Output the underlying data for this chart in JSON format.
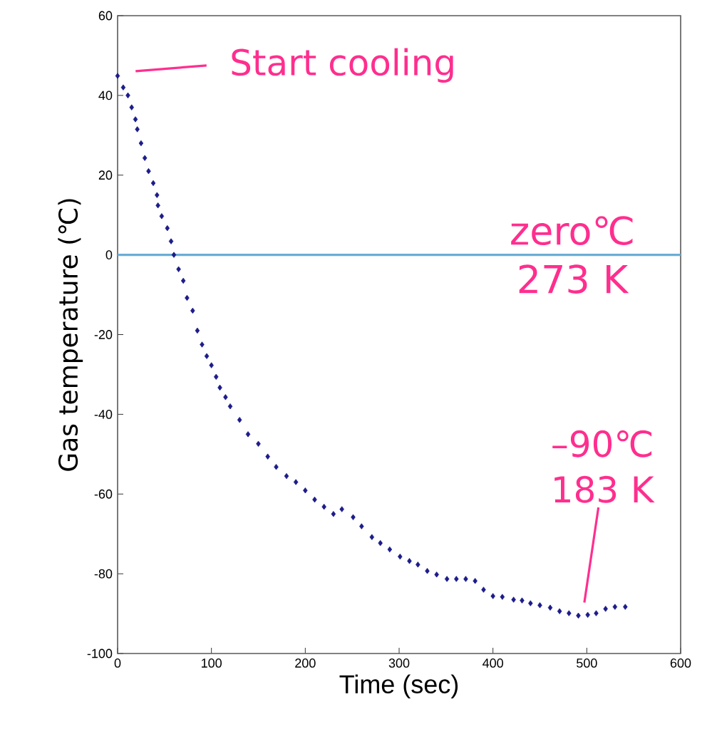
{
  "chart_data": {
    "type": "scatter",
    "xlabel": "Time (sec)",
    "ylabel": "Gas temperature (℃)",
    "x": [
      0,
      6,
      11,
      15,
      19,
      21,
      25,
      29,
      33,
      38,
      42,
      43,
      47,
      53,
      57,
      60,
      65,
      70,
      74,
      80,
      85,
      90,
      95,
      100,
      105,
      109,
      115,
      120,
      130,
      139,
      150,
      160,
      169,
      180,
      190,
      200,
      210,
      220,
      230,
      239,
      251,
      260,
      271,
      280,
      290,
      301,
      311,
      320,
      330,
      340,
      351,
      361,
      371,
      381,
      390,
      400,
      410,
      422,
      431,
      440,
      450,
      461,
      471,
      481,
      491,
      501,
      510,
      520,
      530,
      541
    ],
    "series": [
      {
        "color": "#1c1c8a",
        "values": [
          44.9,
          42,
          40,
          37,
          34,
          31.5,
          28,
          24.3,
          21,
          18,
          15,
          12.4,
          9.7,
          6.7,
          3.4,
          0,
          -3.6,
          -6.5,
          -10.8,
          -14,
          -19,
          -22.5,
          -25.4,
          -27.7,
          -30.6,
          -33.3,
          -35.7,
          -38,
          -41.4,
          -45,
          -47.4,
          -50.6,
          -53.2,
          -55.5,
          -57,
          -59.1,
          -61.4,
          -63.2,
          -65,
          -63.8,
          -65.8,
          -68.1,
          -70.8,
          -72.3,
          -73.9,
          -75.7,
          -76.8,
          -77.7,
          -79.3,
          -80.2,
          -81.3,
          -81.3,
          -81.3,
          -81.8,
          -84,
          -85.6,
          -85.8,
          -86.5,
          -86.7,
          -87.4,
          -87.9,
          -88.5,
          -89.4,
          -89.9,
          -90.5,
          -90.3,
          -89.9,
          -88.8,
          -88.3,
          -88.3
        ]
      }
    ],
    "marker": "diamond",
    "xlim": [
      0,
      600
    ],
    "xticks": [
      0,
      100,
      200,
      300,
      400,
      500,
      600
    ],
    "ylim": [
      -100,
      60
    ],
    "yticks": [
      -100,
      -80,
      -60,
      -40,
      -20,
      0,
      20,
      40,
      60
    ],
    "ref_lines": [
      {
        "axis": "y",
        "value": 0,
        "label": "zero℃ 273 K",
        "color": "#6aaed6"
      }
    ],
    "annotations": [
      "Start cooling",
      "–90℃ 183 K"
    ]
  }
}
